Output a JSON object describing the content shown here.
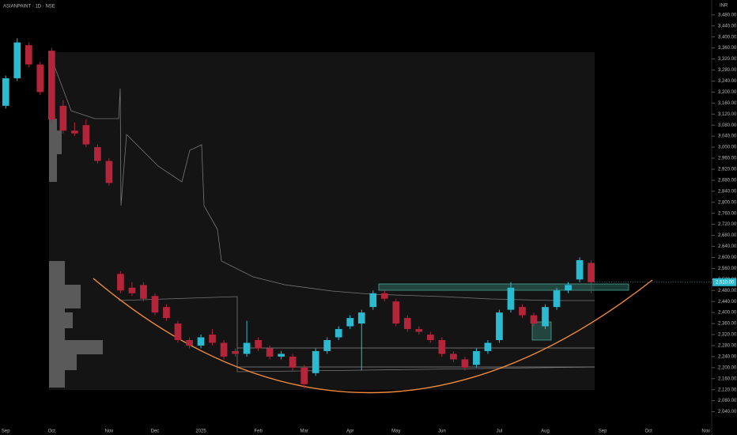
{
  "chart_data": {
    "type": "candlestick",
    "title": "ASIANPAINT · 1D · NSE",
    "currency": "INR",
    "last_price": {
      "value": 2510,
      "label": "2,510.00"
    },
    "categories": [
      "Sep",
      null,
      null,
      null,
      "Oct",
      null,
      null,
      null,
      null,
      "Nov",
      null,
      null,
      null,
      "Dec",
      null,
      null,
      null,
      "2025",
      null,
      null,
      null,
      null,
      "Feb",
      null,
      null,
      null,
      "Mar",
      null,
      null,
      null,
      "Apr",
      null,
      null,
      null,
      "May",
      null,
      null,
      null,
      "Jun",
      null,
      null,
      null,
      null,
      "Jul",
      null,
      null,
      null,
      "Aug",
      null,
      null,
      null,
      null,
      "Sep",
      null,
      null,
      null,
      "Oct",
      null,
      null,
      null,
      null,
      "Nov"
    ],
    "series": [
      {
        "up_color": "#2bbad0",
        "down_color": "#b2253a",
        "open": [
          3150,
          3250,
          3370,
          3300,
          3350,
          3150,
          3060,
          3080,
          3000,
          2950,
          2540,
          2490,
          2500,
          2460,
          2420,
          2360,
          2300,
          2280,
          2320,
          2290,
          2260,
          2250,
          2300,
          2270,
          2240,
          2240,
          2200,
          2180,
          2260,
          2310,
          2350,
          2360,
          2420,
          2470,
          2440,
          2380,
          2340,
          2320,
          2300,
          2250,
          2230,
          2210,
          2260,
          2300,
          2410,
          2420,
          2390,
          2350,
          2420,
          2480,
          2520,
          2580,
          null,
          null,
          null,
          null,
          null,
          null,
          null,
          null,
          null,
          null
        ],
        "high": [
          3260,
          3395,
          3380,
          3310,
          3360,
          3170,
          3090,
          3100,
          3010,
          2960,
          2550,
          2510,
          2510,
          2470,
          2430,
          2370,
          2310,
          2320,
          2340,
          2300,
          2270,
          2370,
          2310,
          2280,
          2260,
          2250,
          2210,
          2270,
          2310,
          2350,
          2390,
          2410,
          2480,
          2480,
          2450,
          2390,
          2350,
          2330,
          2310,
          2260,
          2240,
          2270,
          2300,
          2410,
          2510,
          2430,
          2400,
          2430,
          2490,
          2510,
          2600,
          2590,
          null,
          null,
          null,
          null,
          null,
          null,
          null,
          null,
          null,
          null
        ],
        "low": [
          3140,
          3240,
          3290,
          3190,
          3090,
          3050,
          3040,
          3000,
          2940,
          2860,
          2470,
          2460,
          2440,
          2390,
          2370,
          2290,
          2270,
          2270,
          2280,
          2230,
          2240,
          2240,
          2260,
          2230,
          2230,
          2190,
          2125,
          2170,
          2250,
          2300,
          2340,
          2190,
          2410,
          2440,
          2350,
          2330,
          2320,
          2290,
          2240,
          2220,
          2190,
          2200,
          2250,
          2290,
          2400,
          2380,
          2350,
          2340,
          2410,
          2470,
          2510,
          2470,
          null,
          null,
          null,
          null,
          null,
          null,
          null,
          null,
          null,
          null
        ],
        "close": [
          3250,
          3380,
          3300,
          3200,
          3100,
          3060,
          3050,
          3010,
          2950,
          2870,
          2480,
          2470,
          2450,
          2400,
          2380,
          2300,
          2280,
          2310,
          2290,
          2240,
          2250,
          2290,
          2270,
          2240,
          2250,
          2200,
          2140,
          2260,
          2300,
          2340,
          2380,
          2400,
          2470,
          2450,
          2360,
          2340,
          2330,
          2300,
          2250,
          2230,
          2200,
          2260,
          2290,
          2400,
          2490,
          2390,
          2360,
          2420,
          2480,
          2500,
          2590,
          2510,
          null,
          null,
          null,
          null,
          null,
          null,
          null,
          null,
          null,
          null
        ]
      }
    ],
    "ylim": [
      1990,
      3534
    ],
    "yticks": [
      {
        "value": 2040,
        "label": "2,040.00"
      },
      {
        "value": 2080,
        "label": "2,080.00"
      },
      {
        "value": 2120,
        "label": "2,120.00"
      },
      {
        "value": 2160,
        "label": "2,160.00"
      },
      {
        "value": 2200,
        "label": "2,200.00"
      },
      {
        "value": 2240,
        "label": "2,240.00"
      },
      {
        "value": 2280,
        "label": "2,280.00"
      },
      {
        "value": 2320,
        "label": "2,320.00"
      },
      {
        "value": 2360,
        "label": "2,360.00"
      },
      {
        "value": 2400,
        "label": "2,400.00"
      },
      {
        "value": 2440,
        "label": "2,440.00"
      },
      {
        "value": 2480,
        "label": "2,480.00"
      },
      {
        "value": 2520,
        "label": "2,520.00"
      },
      {
        "value": 2560,
        "label": "2,560.00"
      },
      {
        "value": 2600,
        "label": "2,600.00"
      },
      {
        "value": 2640,
        "label": "2,640.00"
      },
      {
        "value": 2680,
        "label": "2,680.00"
      },
      {
        "value": 2720,
        "label": "2,720.00"
      },
      {
        "value": 2760,
        "label": "2,760.00"
      },
      {
        "value": 2800,
        "label": "2,800.00"
      },
      {
        "value": 2840,
        "label": "2,840.00"
      },
      {
        "value": 2880,
        "label": "2,880.00"
      },
      {
        "value": 2920,
        "label": "2,920.00"
      },
      {
        "value": 2960,
        "label": "2,960.00"
      },
      {
        "value": 3000,
        "label": "3,000.00"
      },
      {
        "value": 3040,
        "label": "3,040.00"
      },
      {
        "value": 3080,
        "label": "3,080.00"
      },
      {
        "value": 3120,
        "label": "3,120.00"
      },
      {
        "value": 3160,
        "label": "3,160.00"
      },
      {
        "value": 3200,
        "label": "3,200.00"
      },
      {
        "value": 3240,
        "label": "3,240.00"
      },
      {
        "value": 3280,
        "label": "3,280.00"
      },
      {
        "value": 3320,
        "label": "3,320.00"
      },
      {
        "value": 3360,
        "label": "3,360.00"
      },
      {
        "value": 3400,
        "label": "3,400.00"
      },
      {
        "value": 3440,
        "label": "3,440.00"
      },
      {
        "value": 3480,
        "label": "3,480.00"
      }
    ]
  }
}
